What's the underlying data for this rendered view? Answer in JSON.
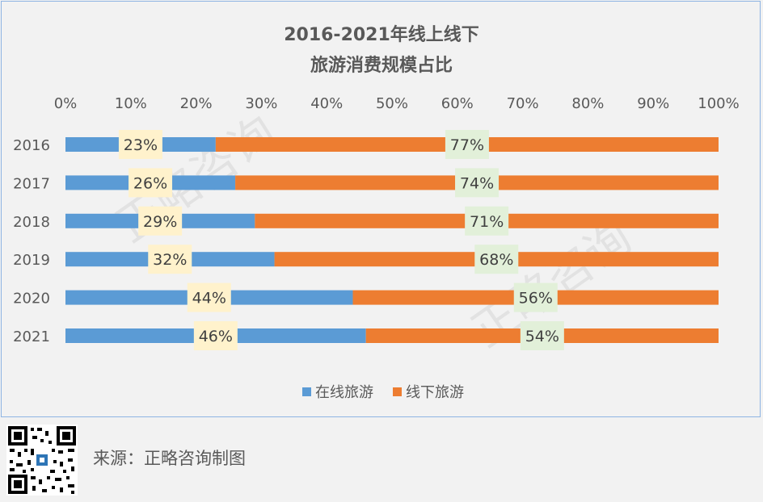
{
  "chart_data": {
    "type": "bar",
    "orientation": "horizontal",
    "stacked": true,
    "title": "2016-2021年线上线下",
    "subtitle": "旅游消费规模占比",
    "categories": [
      "2016",
      "2017",
      "2018",
      "2019",
      "2020",
      "2021"
    ],
    "series": [
      {
        "name": "在线旅游",
        "values": [
          23,
          26,
          29,
          32,
          44,
          46
        ],
        "color": "#5b9bd5",
        "label_bg": "#fff2cc"
      },
      {
        "name": "线下旅游",
        "values": [
          77,
          74,
          71,
          68,
          56,
          54
        ],
        "color": "#ed7d31",
        "label_bg": "#e2f0d9"
      }
    ],
    "x_ticks": [
      "0%",
      "10%",
      "20%",
      "30%",
      "40%",
      "50%",
      "60%",
      "70%",
      "80%",
      "90%",
      "100%"
    ],
    "xlim": [
      0,
      100
    ],
    "value_suffix": "%",
    "x_axis_position": "top",
    "legend_position": "bottom",
    "grid": false
  },
  "watermark": "正略咨询",
  "footer": {
    "source": "来源：正略咨询制图"
  }
}
